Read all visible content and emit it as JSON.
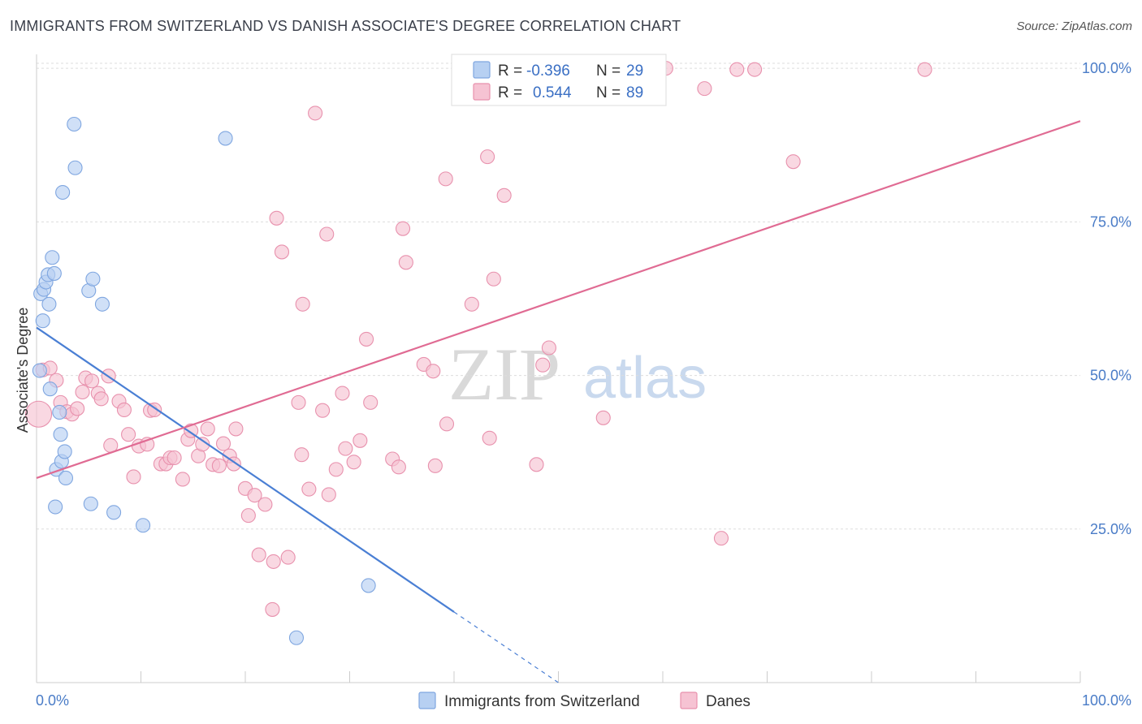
{
  "header": {
    "title": "IMMIGRANTS FROM SWITZERLAND VS DANISH ASSOCIATE'S DEGREE CORRELATION CHART",
    "source": "Source: ZipAtlas.com"
  },
  "watermark": {
    "zip": "ZIP",
    "atlas": "atlas"
  },
  "colors": {
    "blue": "#4a7fd4",
    "blue_fill": "#b7d0f2",
    "pink": "#e06b93",
    "pink_fill": "#f6c3d3",
    "grid": "#dddddd",
    "tick_text": "#4a7cc7"
  },
  "legend_top": {
    "rows": [
      {
        "r_label": "R =",
        "r_value": "-0.396",
        "n_label": "N =",
        "n_value": "29"
      },
      {
        "r_label": "R =",
        "r_value": "0.544",
        "n_label": "N =",
        "n_value": "89"
      }
    ]
  },
  "legend_bottom": {
    "items": [
      "Immigrants from Switzerland",
      "Danes"
    ]
  },
  "chart_data": {
    "type": "scatter",
    "title": "IMMIGRANTS FROM SWITZERLAND VS DANISH ASSOCIATE'S DEGREE CORRELATION CHART",
    "xlabel": "",
    "ylabel": "Associate's Degree",
    "xlim": [
      0,
      100
    ],
    "ylim": [
      0,
      102
    ],
    "x_tick_labels": [
      "0.0%",
      "100.0%"
    ],
    "y_tick_labels": [
      "25.0%",
      "50.0%",
      "75.0%",
      "100.0%"
    ],
    "y_ticks": [
      25,
      50,
      75,
      100
    ],
    "grid": true,
    "legend_position": "top-center",
    "series": [
      {
        "name": "Immigrants from Switzerland",
        "color": "#4a7fd4",
        "r": -0.396,
        "n": 29,
        "trend": {
          "x0": 0,
          "y0": 57.8,
          "x1": 40,
          "y1": 11.5,
          "dash_to_x": 50,
          "dash_to_y": 0
        },
        "points": [
          [
            0.3,
            50.8
          ],
          [
            0.4,
            63.3
          ],
          [
            0.6,
            58.9
          ],
          [
            0.7,
            64.0
          ],
          [
            0.9,
            65.2
          ],
          [
            1.1,
            66.4
          ],
          [
            1.2,
            61.6
          ],
          [
            1.3,
            47.8
          ],
          [
            1.5,
            69.2
          ],
          [
            1.7,
            66.6
          ],
          [
            1.8,
            28.6
          ],
          [
            1.9,
            34.7
          ],
          [
            2.2,
            44.0
          ],
          [
            2.3,
            40.4
          ],
          [
            2.4,
            36.0
          ],
          [
            2.5,
            79.8
          ],
          [
            2.7,
            37.6
          ],
          [
            2.8,
            33.3
          ],
          [
            3.6,
            90.9
          ],
          [
            3.7,
            83.8
          ],
          [
            5.0,
            63.8
          ],
          [
            5.2,
            29.1
          ],
          [
            5.4,
            65.7
          ],
          [
            6.3,
            61.6
          ],
          [
            7.4,
            27.7
          ],
          [
            10.2,
            25.6
          ],
          [
            18.1,
            88.6
          ],
          [
            24.9,
            7.3
          ],
          [
            31.8,
            15.8
          ]
        ]
      },
      {
        "name": "Danes",
        "color": "#e06b93",
        "r": 0.544,
        "n": 89,
        "trend": {
          "x0": 0,
          "y0": 33.3,
          "x1": 100,
          "y1": 91.4
        },
        "points": [
          [
            0.2,
            43.7
          ],
          [
            0.6,
            50.9
          ],
          [
            1.3,
            51.2
          ],
          [
            1.9,
            49.2
          ],
          [
            2.3,
            45.6
          ],
          [
            2.9,
            44.1
          ],
          [
            3.4,
            43.7
          ],
          [
            3.9,
            44.6
          ],
          [
            4.4,
            47.3
          ],
          [
            4.7,
            49.6
          ],
          [
            5.3,
            49.1
          ],
          [
            5.9,
            47.1
          ],
          [
            6.2,
            46.2
          ],
          [
            6.9,
            49.9
          ],
          [
            7.1,
            38.6
          ],
          [
            7.9,
            45.8
          ],
          [
            8.4,
            44.4
          ],
          [
            8.8,
            40.4
          ],
          [
            9.3,
            33.5
          ],
          [
            9.8,
            38.5
          ],
          [
            10.6,
            38.8
          ],
          [
            10.9,
            44.3
          ],
          [
            11.3,
            44.4
          ],
          [
            11.9,
            35.6
          ],
          [
            12.4,
            35.6
          ],
          [
            12.8,
            36.6
          ],
          [
            13.2,
            36.6
          ],
          [
            14.0,
            33.1
          ],
          [
            14.5,
            39.6
          ],
          [
            14.8,
            41.0
          ],
          [
            15.5,
            36.9
          ],
          [
            15.9,
            38.8
          ],
          [
            16.4,
            41.3
          ],
          [
            16.9,
            35.5
          ],
          [
            17.5,
            35.3
          ],
          [
            17.9,
            38.9
          ],
          [
            18.5,
            36.9
          ],
          [
            18.9,
            35.6
          ],
          [
            19.1,
            41.3
          ],
          [
            20.0,
            31.6
          ],
          [
            20.3,
            27.2
          ],
          [
            20.9,
            30.5
          ],
          [
            21.3,
            20.8
          ],
          [
            21.9,
            29.0
          ],
          [
            22.6,
            11.9
          ],
          [
            22.7,
            19.7
          ],
          [
            23.0,
            75.6
          ],
          [
            23.5,
            70.1
          ],
          [
            24.1,
            20.4
          ],
          [
            25.1,
            45.6
          ],
          [
            25.5,
            61.6
          ],
          [
            25.4,
            37.1
          ],
          [
            26.1,
            31.5
          ],
          [
            26.7,
            92.7
          ],
          [
            27.4,
            44.3
          ],
          [
            27.8,
            73.0
          ],
          [
            28.0,
            30.6
          ],
          [
            28.7,
            34.7
          ],
          [
            29.3,
            47.1
          ],
          [
            29.6,
            38.1
          ],
          [
            30.4,
            35.9
          ],
          [
            31.0,
            39.4
          ],
          [
            31.6,
            55.9
          ],
          [
            32.0,
            45.6
          ],
          [
            34.1,
            36.4
          ],
          [
            34.7,
            35.1
          ],
          [
            35.1,
            73.9
          ],
          [
            35.4,
            68.4
          ],
          [
            37.1,
            51.8
          ],
          [
            38.0,
            50.7
          ],
          [
            38.2,
            35.3
          ],
          [
            39.2,
            82.0
          ],
          [
            39.3,
            42.1
          ],
          [
            41.7,
            61.6
          ],
          [
            43.2,
            85.6
          ],
          [
            43.4,
            39.8
          ],
          [
            43.8,
            65.7
          ],
          [
            44.8,
            79.3
          ],
          [
            47.9,
            35.5
          ],
          [
            48.5,
            51.7
          ],
          [
            49.1,
            54.5
          ],
          [
            54.3,
            43.1
          ],
          [
            60.3,
            100.0
          ],
          [
            64.0,
            96.7
          ],
          [
            65.6,
            23.5
          ],
          [
            67.1,
            99.8
          ],
          [
            68.8,
            99.8
          ],
          [
            72.5,
            84.8
          ],
          [
            85.1,
            99.8
          ]
        ]
      }
    ]
  }
}
